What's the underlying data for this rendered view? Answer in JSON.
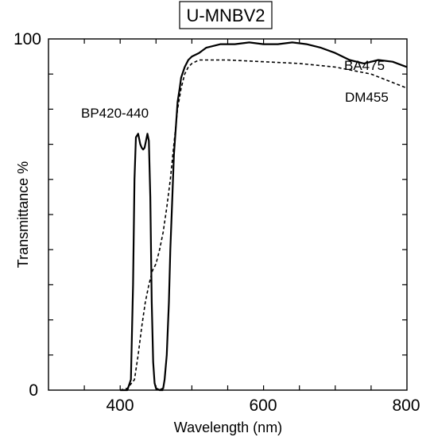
{
  "chart_data": {
    "type": "line",
    "title": "U-MNBV2",
    "xlabel": "Wavelength (nm)",
    "ylabel": "Transmittance  %",
    "xlim": [
      300,
      800
    ],
    "ylim": [
      0,
      100
    ],
    "x_tick_labels": [
      "400",
      "600",
      "800"
    ],
    "y_tick_labels": [
      "0",
      "100"
    ],
    "grid": false,
    "legend": "none",
    "series": [
      {
        "name": "BP420-440",
        "style": "solid",
        "x": [
          400,
          410,
          415,
          418,
          420,
          422,
          425,
          428,
          430,
          432,
          434,
          436,
          438,
          440,
          442,
          444,
          446,
          448,
          450,
          455,
          460
        ],
        "y": [
          0,
          0,
          3,
          30,
          60,
          72,
          73,
          70,
          69,
          68.5,
          69,
          71,
          73,
          71,
          55,
          25,
          8,
          2,
          0.5,
          0,
          0
        ]
      },
      {
        "name": "DM455",
        "style": "dashed",
        "x": [
          400,
          410,
          420,
          425,
          430,
          435,
          440,
          445,
          450,
          455,
          460,
          465,
          470,
          475,
          480,
          485,
          490,
          495,
          500,
          510,
          520,
          550,
          600,
          650,
          700,
          750,
          800
        ],
        "y": [
          0,
          0.5,
          3,
          10,
          18,
          25,
          30,
          34,
          36,
          40,
          45,
          52,
          60,
          70,
          80,
          86,
          90,
          92,
          93,
          94,
          94,
          94,
          93.5,
          93,
          92,
          90,
          86
        ]
      },
      {
        "name": "BA475",
        "style": "solid",
        "x": [
          455,
          460,
          462,
          465,
          468,
          470,
          473,
          475,
          478,
          480,
          483,
          485,
          490,
          495,
          500,
          510,
          520,
          540,
          560,
          580,
          600,
          620,
          640,
          660,
          680,
          700,
          720,
          740,
          760,
          780,
          800
        ],
        "y": [
          0,
          0.5,
          3,
          10,
          25,
          40,
          56,
          67,
          76,
          82,
          86,
          89,
          92,
          94,
          95,
          96,
          97.5,
          98.5,
          98.5,
          99,
          98.5,
          98.5,
          99,
          98.5,
          97.5,
          96,
          94,
          93,
          94,
          93.5,
          92
        ]
      }
    ],
    "annotations": [
      "BP420-440",
      "DM455",
      "BA475"
    ]
  }
}
